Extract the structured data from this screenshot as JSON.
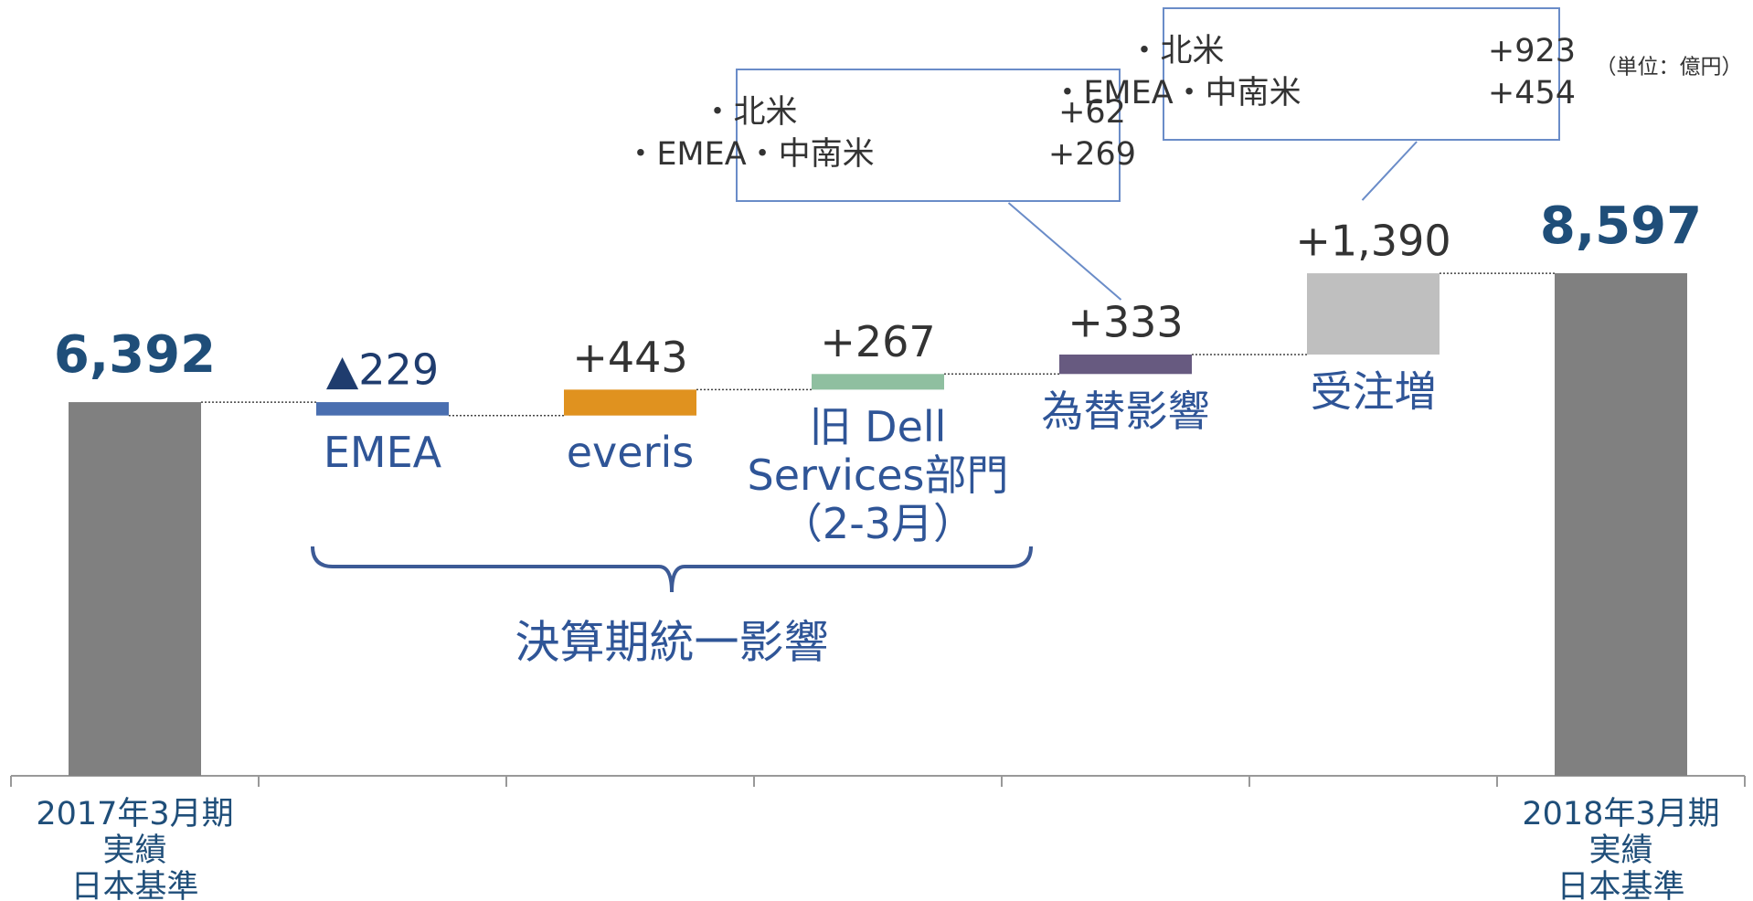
{
  "chart_data": {
    "type": "waterfall",
    "unit_note": "（単位：億円）",
    "categories": [
      [
        "2017年3月期",
        "実績",
        "日本基準"
      ],
      [
        "EMEA"
      ],
      [
        "everis"
      ],
      [
        "旧 Dell",
        "Services部門",
        "（2-3月）"
      ],
      [
        "為替影響"
      ],
      [
        "受注増"
      ],
      [
        "2018年3月期",
        "実績",
        "日本基準"
      ]
    ],
    "kinds": [
      "total",
      "delta",
      "delta",
      "delta",
      "delta",
      "delta",
      "total"
    ],
    "values": [
      6392,
      -229,
      443,
      267,
      333,
      1390,
      8597
    ],
    "value_labels": [
      "6,392",
      "▲229",
      "+443",
      "+267",
      "+333",
      "+1,390",
      "8,597"
    ],
    "colors": [
      "#808080",
      "#4a6fb0",
      "#e0921f",
      "#8fbfa0",
      "#675a80",
      "#bfbfbf",
      "#808080"
    ],
    "bracket": {
      "from": 1,
      "to": 3,
      "label": "決算期統一影響"
    },
    "callouts": [
      {
        "target": 4,
        "items": [
          [
            "・北米",
            "+62"
          ],
          [
            "・EMEA・中南米",
            "+269"
          ]
        ]
      },
      {
        "target": 5,
        "items": [
          [
            "・北米",
            "+923"
          ],
          [
            "・EMEA・中南米",
            "+454"
          ]
        ]
      }
    ]
  }
}
